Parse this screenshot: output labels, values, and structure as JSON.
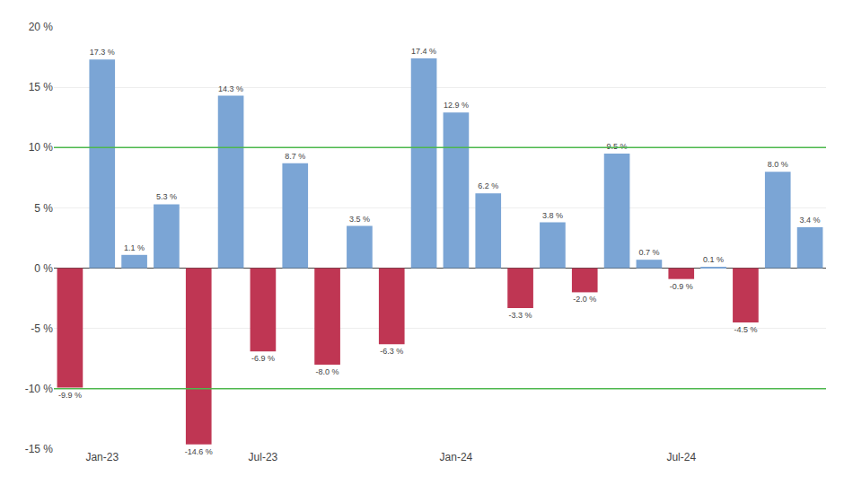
{
  "chart_data": {
    "type": "bar",
    "categories": [
      null,
      "Jan-23",
      null,
      null,
      null,
      null,
      "Jul-23",
      null,
      null,
      null,
      null,
      null,
      "Jan-24",
      null,
      null,
      null,
      null,
      null,
      null,
      "Jul-24",
      null,
      null,
      null,
      null
    ],
    "values": [
      -9.9,
      17.3,
      1.1,
      5.3,
      -14.6,
      14.3,
      -6.9,
      8.7,
      -8.0,
      3.5,
      -6.3,
      17.4,
      12.9,
      6.2,
      -3.3,
      3.8,
      -2.0,
      9.5,
      0.7,
      -0.9,
      0.1,
      -4.5,
      8.0,
      3.4
    ],
    "value_labels": [
      "-9.9 %",
      "17.3 %",
      "1.1 %",
      "5.3 %",
      "-14.6 %",
      "14.3 %",
      "-6.9 %",
      "8.7 %",
      "-8.0 %",
      "3.5 %",
      "-6.3 %",
      "17.4 %",
      "12.9 %",
      "6.2 %",
      "-3.3 %",
      "3.8 %",
      "-2.0 %",
      "9.5 %",
      "0.7 %",
      "-0.9 %",
      "0.1 %",
      "-4.5 %",
      "8.0 %",
      "3.4 %"
    ],
    "colors": [
      "#bf3653",
      "#7ba5d5",
      "#7ba5d5",
      "#7ba5d5",
      "#bf3653",
      "#7ba5d5",
      "#bf3653",
      "#7ba5d5",
      "#bf3653",
      "#7ba5d5",
      "#bf3653",
      "#7ba5d5",
      "#7ba5d5",
      "#7ba5d5",
      "#bf3653",
      "#7ba5d5",
      "#bf3653",
      "#7ba5d5",
      "#7ba5d5",
      "#bf3653",
      "#7ba5d5",
      "#bf3653",
      "#7ba5d5",
      "#7ba5d5"
    ],
    "data_labels": true,
    "hlines": [
      {
        "y": 10,
        "color": "#4db84d"
      },
      {
        "y": -10,
        "color": "#4db84d"
      }
    ],
    "ylim": [
      -15,
      20
    ],
    "yticks": [
      {
        "value": -15,
        "label": "-15 %"
      },
      {
        "value": -10,
        "label": "-10 %"
      },
      {
        "value": -5,
        "label": "-5 %"
      },
      {
        "value": 0,
        "label": "0 %"
      },
      {
        "value": 5,
        "label": "5 %"
      },
      {
        "value": 10,
        "label": "10 %"
      },
      {
        "value": 15,
        "label": "15 %"
      },
      {
        "value": 20,
        "label": "20 %"
      }
    ],
    "grid": true
  }
}
